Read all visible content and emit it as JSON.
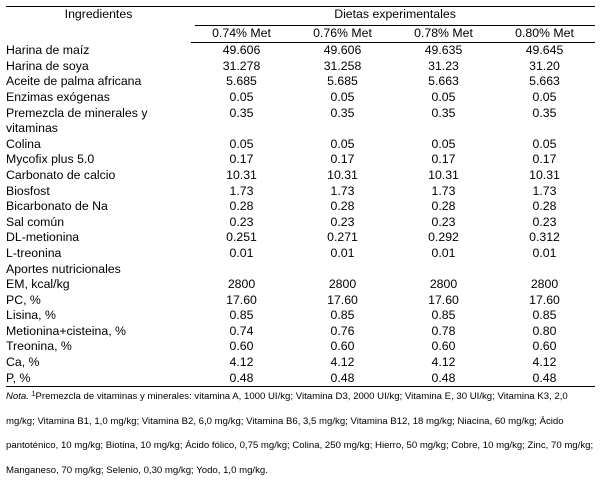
{
  "table": {
    "ingredients_header": "Ingredientes",
    "group_header": "Dietas experimentales",
    "columns": [
      "0.74% Met",
      "0.76% Met",
      "0.78% Met",
      "0.80% Met"
    ],
    "rows": [
      {
        "name": "Harina de maíz",
        "values": [
          "49.606",
          "49.606",
          "49.635",
          "49.645"
        ]
      },
      {
        "name": "Harina de soya",
        "values": [
          "31.278",
          "31.258",
          "31.23",
          "31.20"
        ]
      },
      {
        "name": "Aceite de palma africana",
        "values": [
          "5.685",
          "5.685",
          "5.663",
          "5.663"
        ]
      },
      {
        "name": "Enzimas exógenas",
        "values": [
          "0.05",
          "0.05",
          "0.05",
          "0.05"
        ]
      },
      {
        "name": "Premezcla de minerales y",
        "values": [
          "0.35",
          "0.35",
          "0.35",
          "0.35"
        ]
      },
      {
        "name": "vitaminas",
        "values": [
          "",
          "",
          "",
          ""
        ]
      },
      {
        "name": "Colina",
        "values": [
          "0.05",
          "0.05",
          "0.05",
          "0.05"
        ]
      },
      {
        "name": "Mycofix plus 5.0",
        "values": [
          "0.17",
          "0.17",
          "0.17",
          "0.17"
        ]
      },
      {
        "name": "Carbonato de calcio",
        "values": [
          "10.31",
          "10.31",
          "10.31",
          "10.31"
        ]
      },
      {
        "name": "Biosfost",
        "values": [
          "1.73",
          "1.73",
          "1.73",
          "1.73"
        ]
      },
      {
        "name": "Bicarbonato de Na",
        "values": [
          "0.28",
          "0.28",
          "0.28",
          "0.28"
        ]
      },
      {
        "name": "Sal común",
        "values": [
          "0.23",
          "0.23",
          "0.23",
          "0.23"
        ]
      },
      {
        "name": "DL-metionina",
        "values": [
          "0.251",
          "0.271",
          "0.292",
          "0.312"
        ]
      },
      {
        "name": "L-treonina",
        "values": [
          "0.01",
          "0.01",
          "0.01",
          "0.01"
        ]
      },
      {
        "name": "Aportes nutricionales",
        "values": [
          "",
          "",
          "",
          ""
        ]
      },
      {
        "name": "EM, kcal/kg",
        "values": [
          "2800",
          "2800",
          "2800",
          "2800"
        ]
      },
      {
        "name": "PC, %",
        "values": [
          "17.60",
          "17.60",
          "17.60",
          "17.60"
        ]
      },
      {
        "name": "Lisina, %",
        "values": [
          "0.85",
          "0.85",
          "0.85",
          "0.85"
        ]
      },
      {
        "name": "Metionina+cisteina, %",
        "values": [
          "0.74",
          "0.76",
          "0.78",
          "0.80"
        ]
      },
      {
        "name": "Treonina, %",
        "values": [
          "0.60",
          "0.60",
          "0.60",
          "0.60"
        ]
      },
      {
        "name": "Ca, %",
        "values": [
          "4.12",
          "4.12",
          "4.12",
          "4.12"
        ]
      },
      {
        "name": "P, %",
        "values": [
          "0.48",
          "0.48",
          "0.48",
          "0.48"
        ]
      }
    ]
  },
  "note": {
    "label": "Nota.",
    "superscript": "1",
    "text": "Premezcla de vitaminas y minerales: vitamina A, 1000 UI/kg; Vitamina D3, 2000 UI/kg; Vitamina E, 30 UI/kg; Vitamina K3, 2,0 mg/kg; Vitamina B1, 1,0 mg/kg; Vitamina B2, 6,0 mg/kg; Vitamina B6, 3,5 mg/kg; Vitamina B12, 18 mg/kg; Niacina, 60 mg/kg; Ácido pantoténico, 10 mg/kg; Biotina, 10 mg/kg; Ácido fólico, 0,75 mg/kg; Colina, 250 mg/kg; Hierro, 50 mg/kg; Cobre, 10 mg/kg; Zinc, 70 mg/kg; Manganeso, 70 mg/kg; Selenio, 0,30 mg/kg; Yodo, 1,0 mg/kg."
  }
}
